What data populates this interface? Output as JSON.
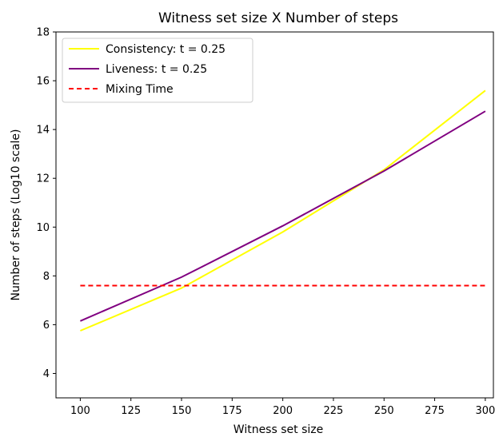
{
  "chart_data": {
    "type": "line",
    "title": "Witness set size X Number of steps",
    "xlabel": "Witness set size",
    "ylabel": "Number of steps (Log10 scale)",
    "xlim": [
      88,
      304
    ],
    "ylim": [
      3,
      18
    ],
    "xticks": [
      100,
      125,
      150,
      175,
      200,
      225,
      250,
      275,
      300
    ],
    "yticks": [
      4,
      6,
      8,
      10,
      12,
      14,
      16,
      18
    ],
    "grid": false,
    "legend_position": "top-left",
    "series": [
      {
        "name": "Consistency: t = 0.25",
        "color": "#ffff00",
        "style": "solid",
        "x": [
          100,
          150,
          200,
          250,
          300
        ],
        "y": [
          5.75,
          7.5,
          9.8,
          12.35,
          15.6
        ]
      },
      {
        "name": "Liveness: t = 0.25",
        "color": "#800080",
        "style": "solid",
        "x": [
          100,
          150,
          200,
          250,
          300
        ],
        "y": [
          6.15,
          7.95,
          10.05,
          12.3,
          14.75
        ]
      },
      {
        "name": "Mixing Time",
        "color": "#ff0000",
        "style": "dashed",
        "x": [
          100,
          300
        ],
        "y": [
          7.6,
          7.6
        ]
      }
    ]
  }
}
